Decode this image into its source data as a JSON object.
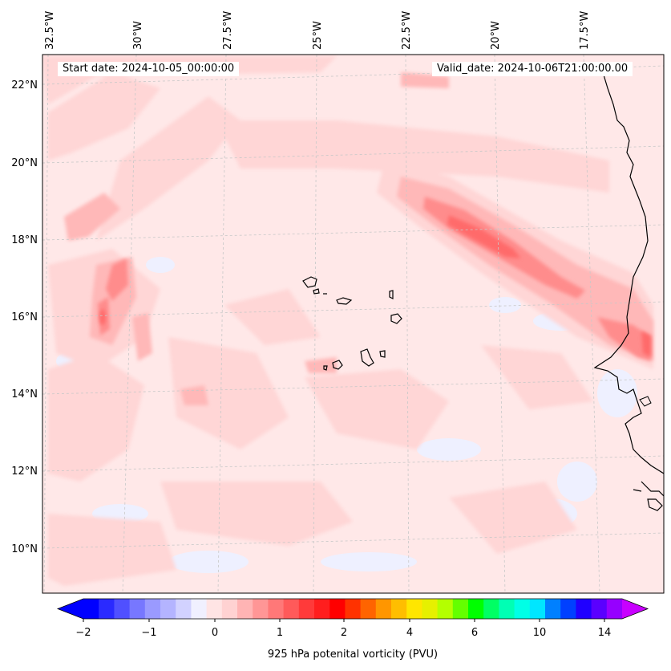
{
  "header": {
    "start_date": "Start date: 2024-10-05_00:00:00",
    "valid_date": "Valid_date: 2024-10-06T21:00:00.00"
  },
  "map": {
    "projection": "regional conic",
    "lon_labels": [
      "32.5°W",
      "30°W",
      "27.5°W",
      "25°W",
      "22.5°W",
      "20°W",
      "17.5°W"
    ],
    "lat_labels": [
      "22°N",
      "20°N",
      "18°N",
      "16°N",
      "14°N",
      "12°N",
      "10°N"
    ],
    "features": [
      "Cape Verde islands",
      "West African coastline"
    ],
    "colormap": "blue-white-red-rainbow"
  },
  "colorbar": {
    "label": "925 hPa potenital vorticity (PVU)",
    "ticks": [
      "−2",
      "−1",
      "0",
      "1",
      "2",
      "4",
      "6",
      "10",
      "14"
    ],
    "colors": [
      "#0000ff",
      "#2a2aff",
      "#5050ff",
      "#7777ff",
      "#9a9aff",
      "#b4b4ff",
      "#d2d2ff",
      "#f0f0ff",
      "#ffe4e4",
      "#ffd2d2",
      "#ffb4b4",
      "#ff9696",
      "#ff7878",
      "#ff5a5a",
      "#ff3a3a",
      "#ff1e1e",
      "#ff0000",
      "#ff3200",
      "#ff6400",
      "#ff9600",
      "#ffbe00",
      "#ffe600",
      "#e6f000",
      "#b4ff00",
      "#64ff00",
      "#00ff00",
      "#00ff64",
      "#00ffb4",
      "#00ffe6",
      "#00e6ff",
      "#0080ff",
      "#0040ff",
      "#2000ff",
      "#5a00ff",
      "#9600ff"
    ],
    "extend_min": "#0000ff",
    "extend_max": "#c800ff"
  }
}
